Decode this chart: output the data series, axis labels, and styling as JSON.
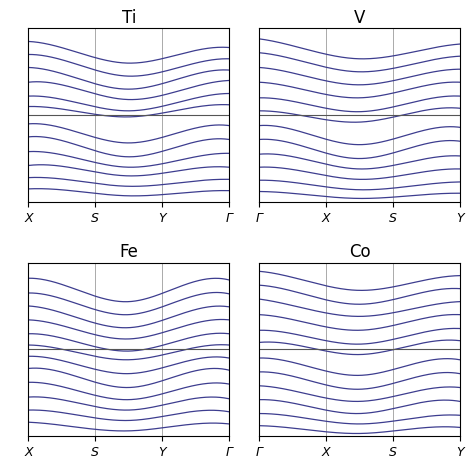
{
  "titles": [
    "Ti",
    "V",
    "Fe",
    "Co"
  ],
  "x_tick_labels_left": [
    "X",
    "S",
    "Y",
    "Γ"
  ],
  "x_tick_labels_right": [
    "Γ",
    "X",
    "S",
    "Y"
  ],
  "band_color": "#3d3d8f",
  "fermi_color": "#555555",
  "vline_color": "#aaaaaa",
  "line_width": 0.9,
  "fermi_lw": 0.8,
  "n_points": 200,
  "ylim": [
    -1.0,
    1.0
  ],
  "figsize": [
    4.74,
    4.74
  ],
  "dpi": 100
}
